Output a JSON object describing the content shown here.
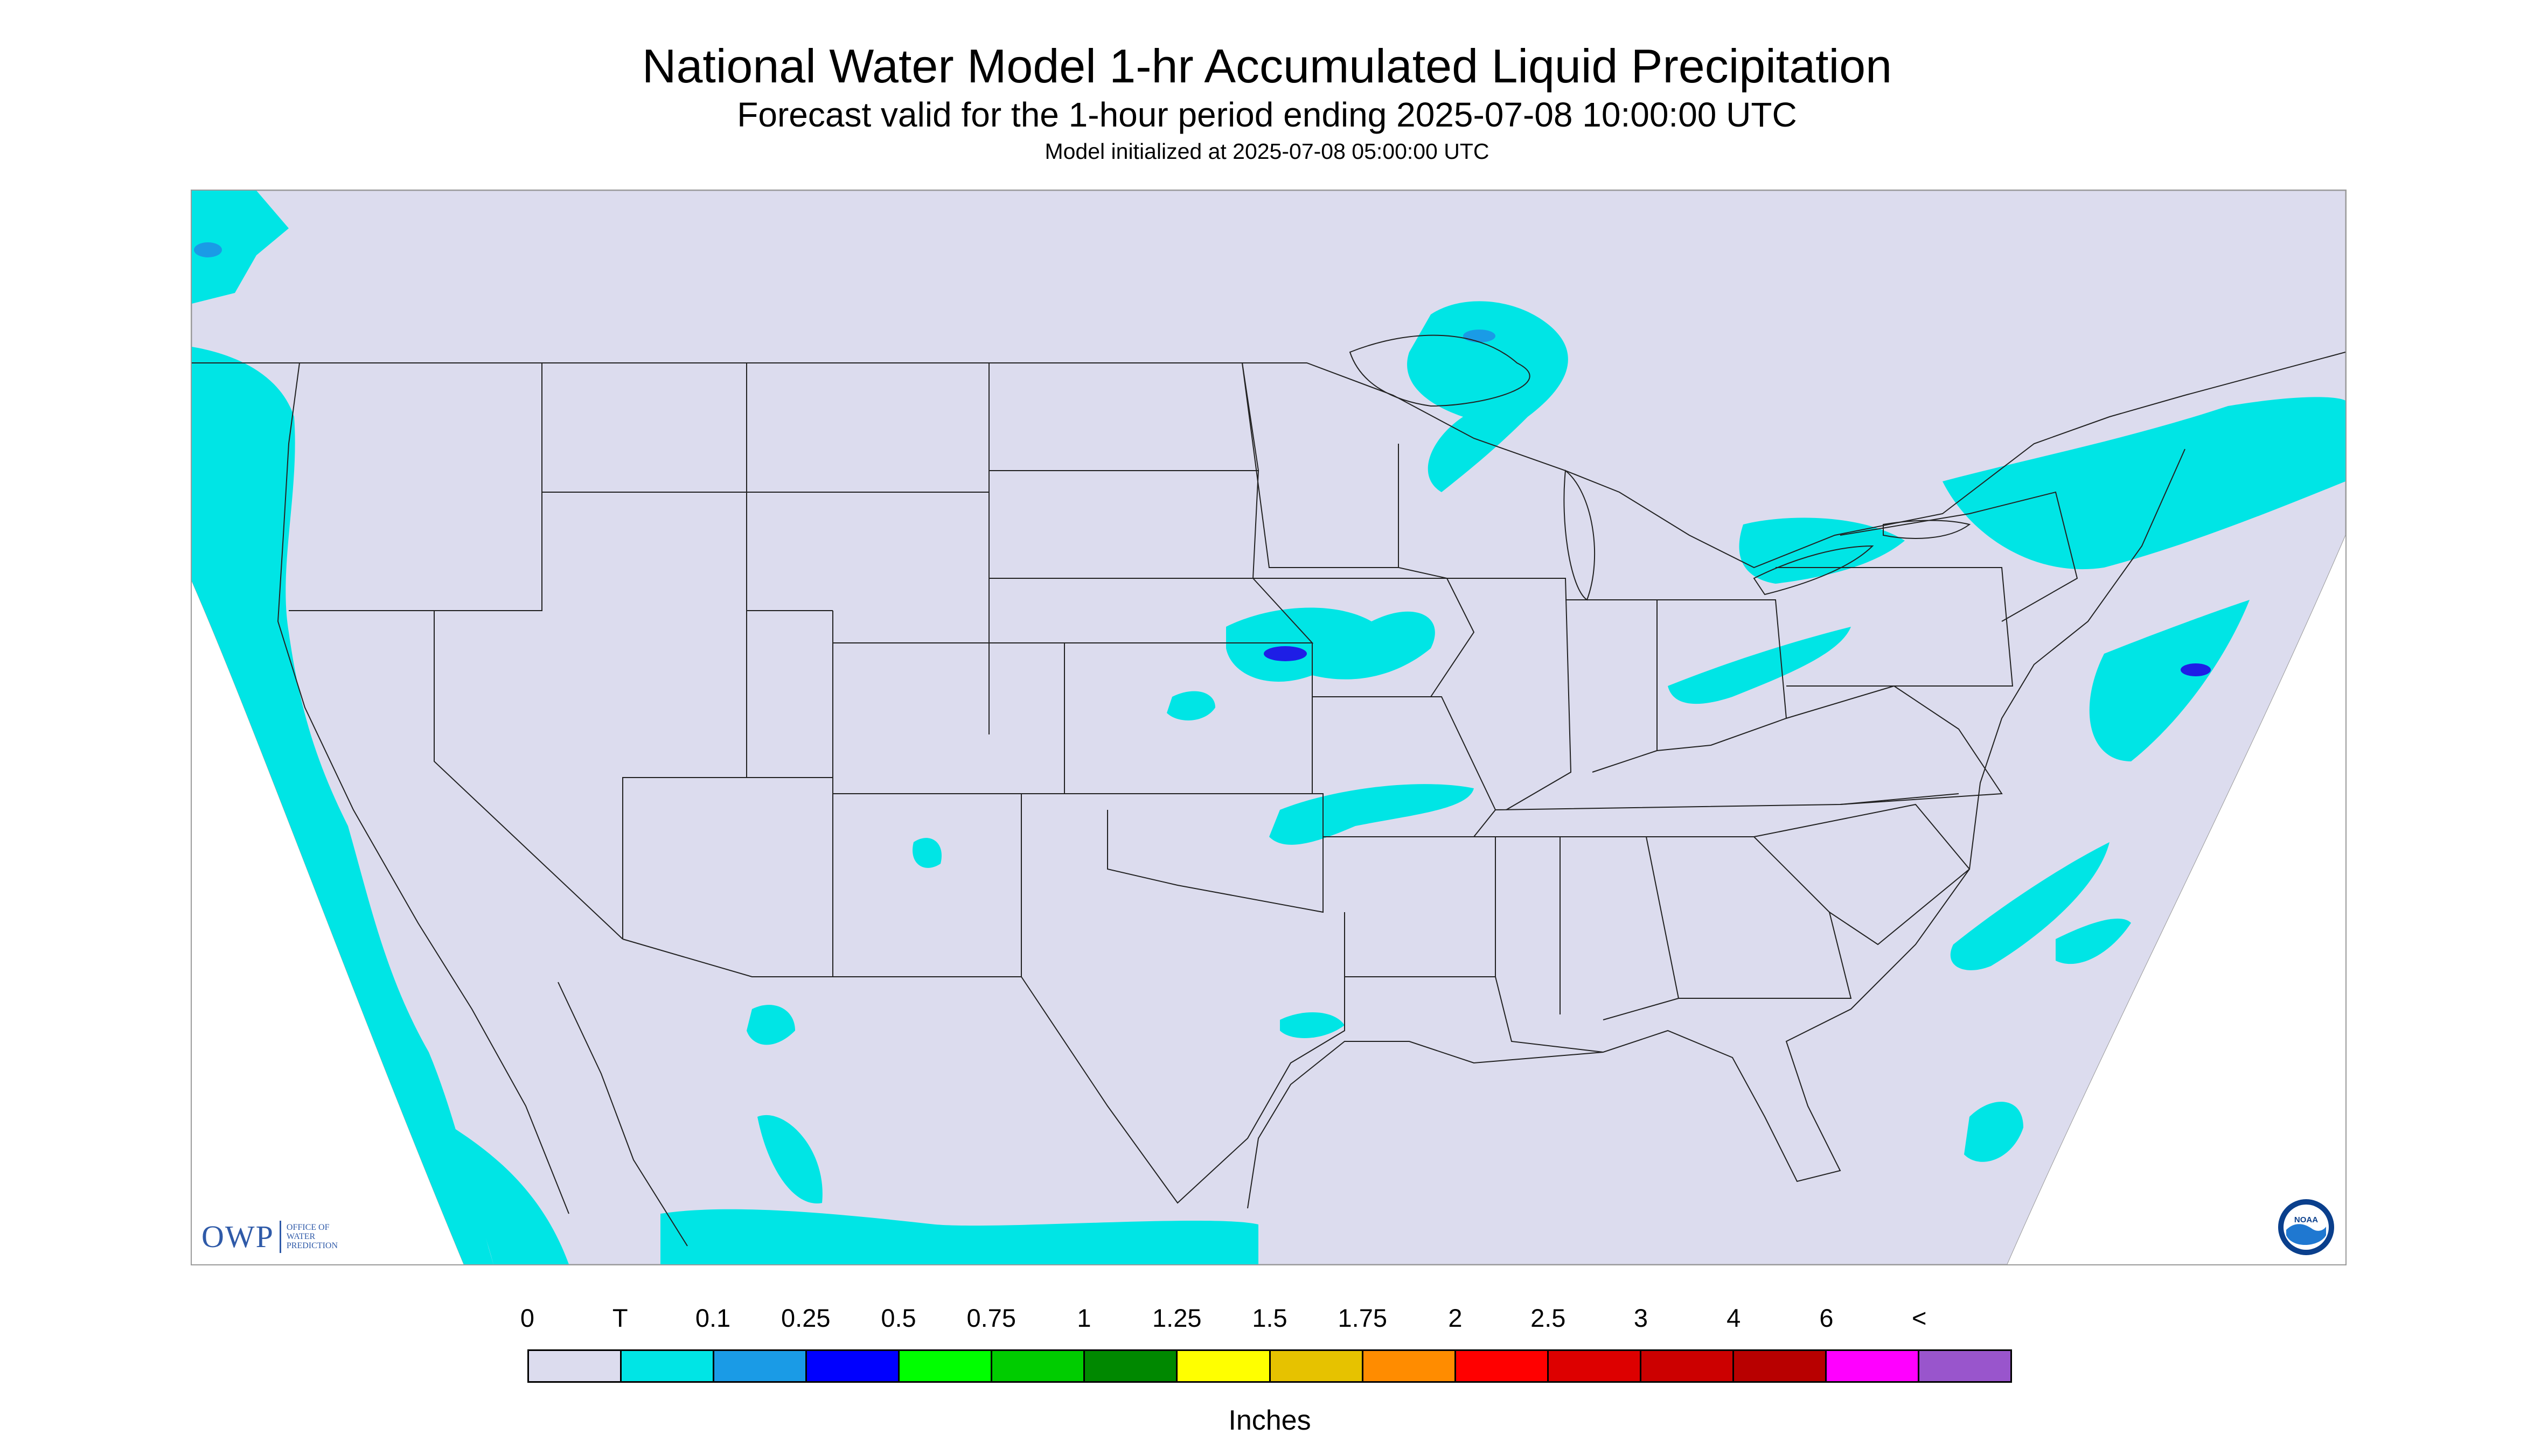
{
  "title": "National Water Model 1-hr Accumulated Liquid Precipitation",
  "subtitle": "Forecast valid for the 1-hour period ending 2025-07-08 10:00:00 UTC",
  "init_text": "Model initialized at 2025-07-08 05:00:00 UTC",
  "map": {
    "background_color": "#dcdcee",
    "outside_color": "#ffffff",
    "border_color": "#222222",
    "precip_primary_color": "#00e5e5",
    "precip_secondary_color": "#1a9be6",
    "precip_heavy_color": "#1e1ee6"
  },
  "owp_logo": {
    "acronym": "OWP",
    "name": "OFFICE OF\nWATER\nPREDICTION"
  },
  "noaa_logo": {
    "text": "NOAA"
  },
  "legend": {
    "labels": [
      "0",
      "T",
      "0.1",
      "0.25",
      "0.5",
      "0.75",
      "1",
      "1.25",
      "1.5",
      "1.75",
      "2",
      "2.5",
      "3",
      "4",
      "6",
      "<"
    ],
    "colors": [
      "#dcdcee",
      "#00e5e5",
      "#1a9be6",
      "#0000ff",
      "#00ff00",
      "#00cc00",
      "#008800",
      "#ffff00",
      "#e6c200",
      "#ff8c00",
      "#ff0000",
      "#dd0000",
      "#cc0000",
      "#b80000",
      "#ff00ff",
      "#9955cc"
    ],
    "units": "Inches"
  }
}
